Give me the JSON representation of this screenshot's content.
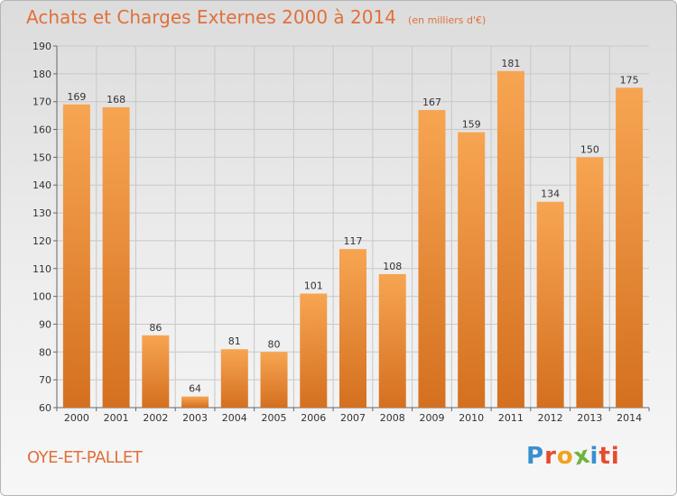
{
  "header": {
    "title": "Achats et Charges Externes 2000 à 2014",
    "unit_note": "(en milliers d'€)"
  },
  "footer": {
    "commune": "OYE-ET-PALLET",
    "logo_letters": [
      "P",
      "r",
      "o",
      "x",
      "i",
      "t",
      "i"
    ]
  },
  "colors": {
    "title": "#e0703a",
    "bar_top": "#f7a552",
    "bar_bottom": "#d4701f",
    "grid": "#c8c8c8"
  },
  "chart_data": {
    "type": "bar",
    "title": "Achats et Charges Externes 2000 à 2014",
    "xlabel": "",
    "ylabel": "",
    "categories": [
      "2000",
      "2001",
      "2002",
      "2003",
      "2004",
      "2005",
      "2006",
      "2007",
      "2008",
      "2009",
      "2010",
      "2011",
      "2012",
      "2013",
      "2014"
    ],
    "values": [
      169,
      168,
      86,
      64,
      81,
      80,
      101,
      117,
      108,
      167,
      159,
      181,
      134,
      150,
      175
    ],
    "ylim": [
      60,
      190
    ],
    "yticks": [
      60,
      70,
      80,
      90,
      100,
      110,
      120,
      130,
      140,
      150,
      160,
      170,
      180,
      190
    ],
    "grid": true,
    "data_labels": true
  }
}
